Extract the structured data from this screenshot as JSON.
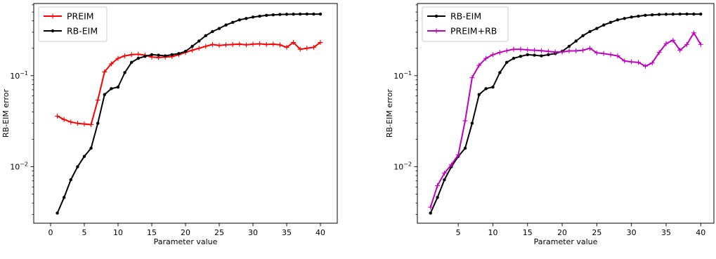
{
  "chart_data": [
    {
      "type": "line",
      "xlabel": "Parameter value",
      "ylabel": "RB-EIM error",
      "yscale": "log",
      "xlim": [
        -2.5,
        42.5
      ],
      "ylim": [
        0.0024,
        0.62
      ],
      "grid": false,
      "legend_position": "top-left",
      "x_ticks": [
        0,
        5,
        10,
        15,
        20,
        25,
        30,
        35,
        40
      ],
      "y_ticks": [
        {
          "value": 0.01,
          "base": "10",
          "exp": "−2"
        },
        {
          "value": 0.1,
          "base": "10",
          "exp": "−1"
        }
      ],
      "x": [
        1,
        2,
        3,
        4,
        5,
        6,
        7,
        8,
        9,
        10,
        11,
        12,
        13,
        14,
        15,
        16,
        17,
        18,
        19,
        20,
        21,
        22,
        23,
        24,
        25,
        26,
        27,
        28,
        29,
        30,
        31,
        32,
        33,
        34,
        35,
        36,
        37,
        38,
        39,
        40
      ],
      "series": [
        {
          "name": "PREIM",
          "color": "#ff0000",
          "marker": "plus",
          "values": [
            0.036,
            0.033,
            0.031,
            0.03,
            0.0295,
            0.029,
            0.054,
            0.11,
            0.135,
            0.155,
            0.165,
            0.17,
            0.172,
            0.168,
            0.16,
            0.158,
            0.16,
            0.162,
            0.17,
            0.18,
            0.19,
            0.2,
            0.21,
            0.22,
            0.215,
            0.218,
            0.22,
            0.222,
            0.218,
            0.222,
            0.224,
            0.22,
            0.222,
            0.218,
            0.205,
            0.232,
            0.195,
            0.2,
            0.205,
            0.232
          ]
        },
        {
          "name": "RB-EIM",
          "color": "#000000",
          "marker": "dot",
          "values": [
            0.0031,
            0.0046,
            0.0072,
            0.01,
            0.013,
            0.016,
            0.03,
            0.062,
            0.072,
            0.075,
            0.108,
            0.14,
            0.155,
            0.163,
            0.17,
            0.168,
            0.165,
            0.17,
            0.175,
            0.185,
            0.21,
            0.24,
            0.275,
            0.305,
            0.33,
            0.36,
            0.385,
            0.41,
            0.425,
            0.44,
            0.45,
            0.46,
            0.465,
            0.47,
            0.472,
            0.473,
            0.474,
            0.476,
            0.474,
            0.474
          ]
        }
      ]
    },
    {
      "type": "line",
      "xlabel": "Parameter value",
      "ylabel": "RB-EIM error",
      "yscale": "log",
      "xlim": [
        -0.9,
        41.9
      ],
      "ylim": [
        0.0024,
        0.62
      ],
      "grid": false,
      "legend_position": "top-left",
      "x_ticks": [
        5,
        10,
        15,
        20,
        25,
        30,
        35,
        40
      ],
      "y_ticks": [
        {
          "value": 0.01,
          "base": "10",
          "exp": "−2"
        },
        {
          "value": 0.1,
          "base": "10",
          "exp": "−1"
        }
      ],
      "x": [
        1,
        2,
        3,
        4,
        5,
        6,
        7,
        8,
        9,
        10,
        11,
        12,
        13,
        14,
        15,
        16,
        17,
        18,
        19,
        20,
        21,
        22,
        23,
        24,
        25,
        26,
        27,
        28,
        29,
        30,
        31,
        32,
        33,
        34,
        35,
        36,
        37,
        38,
        39,
        40
      ],
      "series": [
        {
          "name": "RB-EIM",
          "color": "#000000",
          "marker": "dot",
          "values": [
            0.0031,
            0.0046,
            0.0072,
            0.01,
            0.013,
            0.016,
            0.03,
            0.062,
            0.072,
            0.075,
            0.108,
            0.14,
            0.155,
            0.163,
            0.17,
            0.168,
            0.165,
            0.17,
            0.175,
            0.185,
            0.21,
            0.24,
            0.275,
            0.305,
            0.33,
            0.36,
            0.385,
            0.41,
            0.425,
            0.44,
            0.45,
            0.46,
            0.465,
            0.47,
            0.472,
            0.473,
            0.474,
            0.476,
            0.474,
            0.474
          ]
        },
        {
          "name": "PREIM+RB",
          "color": "#bf00bf",
          "marker": "plus",
          "values": [
            0.0036,
            0.0062,
            0.0085,
            0.0105,
            0.0135,
            0.032,
            0.095,
            0.13,
            0.155,
            0.17,
            0.18,
            0.188,
            0.195,
            0.195,
            0.192,
            0.19,
            0.188,
            0.185,
            0.182,
            0.182,
            0.187,
            0.187,
            0.19,
            0.2,
            0.178,
            0.175,
            0.17,
            0.165,
            0.145,
            0.142,
            0.14,
            0.127,
            0.138,
            0.18,
            0.225,
            0.245,
            0.19,
            0.22,
            0.295,
            0.22
          ]
        }
      ]
    }
  ]
}
